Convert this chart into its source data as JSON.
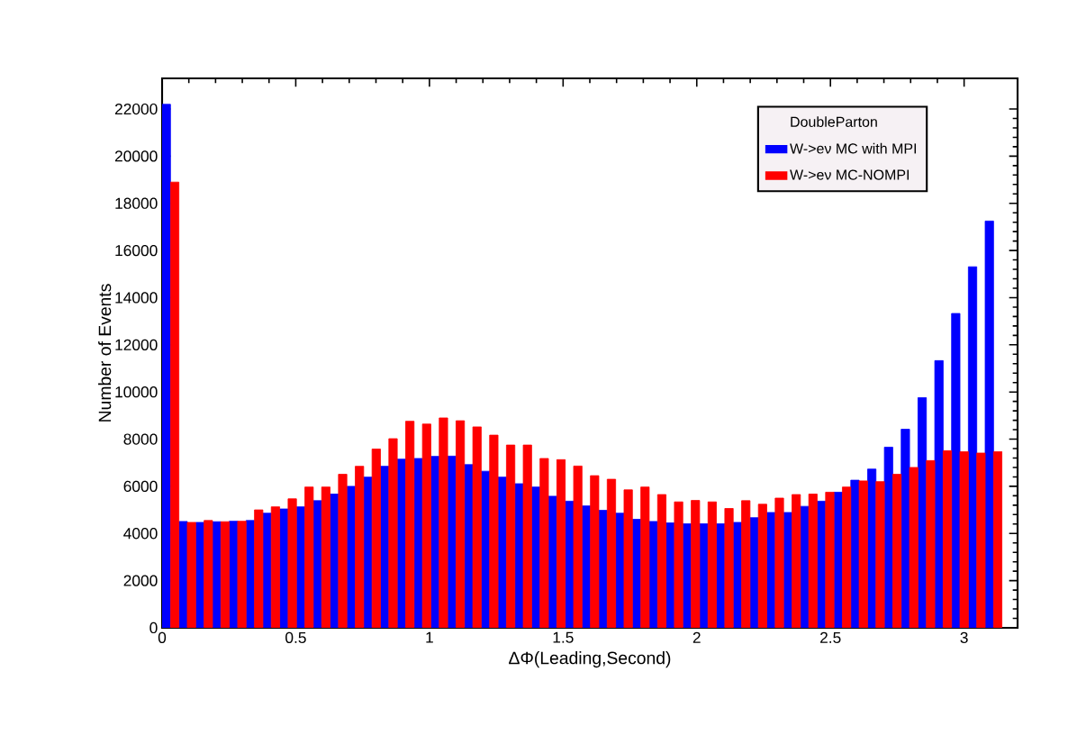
{
  "chart_data": {
    "type": "histogram",
    "xlabel": "ΔΦ(Leading,Second)",
    "ylabel": "Number of Events",
    "legend_title": "DoubleParton",
    "legend": "top right",
    "bins": [
      0,
      0.0628,
      0.1257,
      0.1885,
      0.2513,
      0.3142,
      0.377,
      0.4398,
      0.5027,
      0.5655,
      0.6283,
      0.6912,
      0.754,
      0.8168,
      0.8796,
      0.9425,
      1.0053,
      1.0681,
      1.131,
      1.1938,
      1.2566,
      1.3195,
      1.3823,
      1.4451,
      1.508,
      1.5708,
      1.6336,
      1.6965,
      1.7593,
      1.8221,
      1.885,
      1.9478,
      2.0106,
      2.0735,
      2.1363,
      2.1991,
      2.2619,
      2.3248,
      2.3876,
      2.4504,
      2.5133,
      2.5761,
      2.6389,
      2.7018,
      2.7646,
      2.8274,
      2.8903,
      2.9531,
      3.0159,
      3.0788,
      3.1416
    ],
    "series": [
      {
        "name": "W->eν MC with MPI",
        "color": "#0000ff",
        "values": [
          22200,
          4510,
          4470,
          4500,
          4520,
          4550,
          4860,
          5040,
          5130,
          5390,
          5670,
          6000,
          6390,
          6850,
          7150,
          7180,
          7270,
          7280,
          6920,
          6640,
          6390,
          6110,
          5970,
          5580,
          5370,
          5170,
          4980,
          4860,
          4600,
          4510,
          4450,
          4410,
          4410,
          4410,
          4470,
          4670,
          4890,
          4890,
          5150,
          5370,
          5750,
          6260,
          6730,
          7660,
          8420,
          9760,
          11330,
          13330,
          15310,
          17250
        ]
      },
      {
        "name": "W->eν MC-NOMPI",
        "color": "#ff0000",
        "values": [
          18900,
          4470,
          4550,
          4500,
          4520,
          5000,
          5130,
          5470,
          5970,
          5970,
          6510,
          6850,
          7580,
          8020,
          8760,
          8640,
          8900,
          8780,
          8520,
          8170,
          7750,
          7750,
          7180,
          7130,
          6860,
          6450,
          6300,
          5850,
          5970,
          5650,
          5340,
          5400,
          5340,
          5060,
          5390,
          5240,
          5500,
          5650,
          5670,
          5750,
          5970,
          6230,
          6200,
          6510,
          6800,
          7090,
          7510,
          7470,
          7410,
          7470
        ]
      }
    ],
    "xlim": [
      0,
      3.2
    ],
    "ylim": [
      0,
      23300
    ],
    "xticks": [
      0,
      0.5,
      1,
      1.5,
      2,
      2.5,
      3
    ],
    "yticks": [
      0,
      2000,
      4000,
      6000,
      8000,
      10000,
      12000,
      14000,
      16000,
      18000,
      20000,
      22000
    ]
  }
}
